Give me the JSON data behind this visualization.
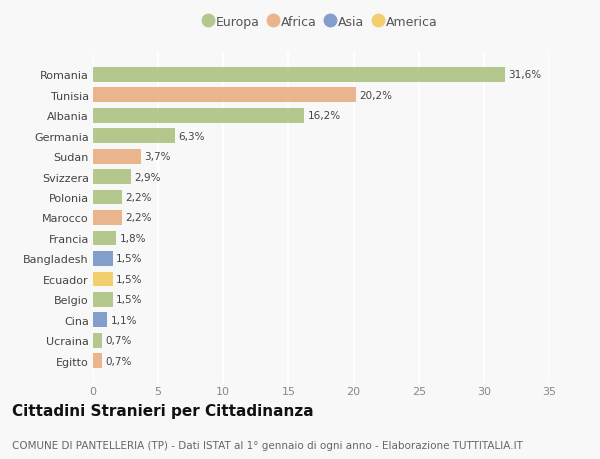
{
  "countries": [
    "Romania",
    "Tunisia",
    "Albania",
    "Germania",
    "Sudan",
    "Svizzera",
    "Polonia",
    "Marocco",
    "Francia",
    "Bangladesh",
    "Ecuador",
    "Belgio",
    "Cina",
    "Ucraina",
    "Egitto"
  ],
  "values": [
    31.6,
    20.2,
    16.2,
    6.3,
    3.7,
    2.9,
    2.2,
    2.2,
    1.8,
    1.5,
    1.5,
    1.5,
    1.1,
    0.7,
    0.7
  ],
  "labels": [
    "31,6%",
    "20,2%",
    "16,2%",
    "6,3%",
    "3,7%",
    "2,9%",
    "2,2%",
    "2,2%",
    "1,8%",
    "1,5%",
    "1,5%",
    "1,5%",
    "1,1%",
    "0,7%",
    "0,7%"
  ],
  "continents": [
    "Europa",
    "Africa",
    "Europa",
    "Europa",
    "Africa",
    "Europa",
    "Europa",
    "Africa",
    "Europa",
    "Asia",
    "America",
    "Europa",
    "Asia",
    "Europa",
    "Africa"
  ],
  "continent_colors": {
    "Europa": "#a8c07a",
    "Africa": "#e8aa7a",
    "Asia": "#6e8ec4",
    "America": "#f0c855"
  },
  "legend_order": [
    "Europa",
    "Africa",
    "Asia",
    "America"
  ],
  "title": "Cittadini Stranieri per Cittadinanza",
  "subtitle": "COMUNE DI PANTELLERIA (TP) - Dati ISTAT al 1° gennaio di ogni anno - Elaborazione TUTTITALIA.IT",
  "xlim": [
    0,
    35
  ],
  "xticks": [
    0,
    5,
    10,
    15,
    20,
    25,
    30,
    35
  ],
  "background_color": "#f8f8f8",
  "plot_bg_color": "#f8f8f8",
  "grid_color": "#ffffff",
  "bar_height": 0.72,
  "title_fontsize": 11,
  "subtitle_fontsize": 7.5,
  "label_fontsize": 7.5,
  "tick_fontsize": 8,
  "legend_fontsize": 9
}
